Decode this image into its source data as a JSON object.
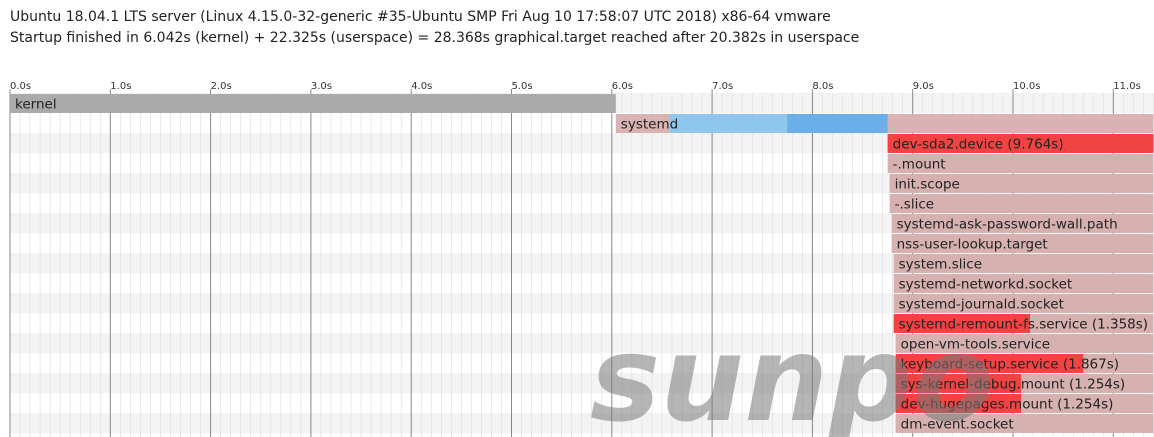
{
  "header": {
    "line1": "Ubuntu 18.04.1 LTS server (Linux 4.15.0-32-generic #35-Ubuntu SMP Fri Aug 10 17:58:07 UTC 2018) x86-64 vmware",
    "line2": "Startup finished in 6.042s (kernel) + 22.325s (userspace) = 28.368s graphical.target reached after 20.382s in userspace"
  },
  "watermark": "sunpo",
  "colors": {
    "kernel": "#aaaaaa",
    "systemd": "#d9b3b3",
    "activating": "#8ec6ee",
    "activating_late": "#6aaeea",
    "unit_bg": "#d7b0b0",
    "unit_active": "#f24343",
    "grid_minor": "#dddddd",
    "grid_major": "#888888",
    "background_stripe": "#f3f3f3"
  },
  "chart_data": {
    "type": "gantt",
    "xlabel": "",
    "ylabel": "",
    "xlim": [
      0,
      11.4
    ],
    "ticks": [
      "0.0s",
      "1.0s",
      "2.0s",
      "3.0s",
      "4.0s",
      "5.0s",
      "6.0s",
      "7.0s",
      "8.0s",
      "9.0s",
      "10.0s",
      "11.0s"
    ],
    "tick_values": [
      0,
      1,
      2,
      3,
      4,
      5,
      6,
      7,
      8,
      9,
      10,
      11
    ],
    "rows": [
      {
        "label": "kernel",
        "kind": "kernel",
        "start": 0.0,
        "end": 6.04
      },
      {
        "label": "systemd",
        "kind": "systemd",
        "start": 6.04,
        "end": 11.4,
        "act_start": 6.58,
        "act_mid": 7.75,
        "act_end": 8.75
      },
      {
        "label": "dev-sda2.device (9.764s)",
        "kind": "unit",
        "start": 8.75,
        "end": 11.4,
        "act_start": 8.75,
        "act_end": 11.4
      },
      {
        "label": "-.mount",
        "kind": "unit",
        "start": 8.75,
        "end": 11.4
      },
      {
        "label": "init.scope",
        "kind": "unit",
        "start": 8.77,
        "end": 11.4
      },
      {
        "label": "-.slice",
        "kind": "unit",
        "start": 8.77,
        "end": 11.4
      },
      {
        "label": "systemd-ask-password-wall.path",
        "kind": "unit",
        "start": 8.79,
        "end": 11.4
      },
      {
        "label": "nss-user-lookup.target",
        "kind": "unit",
        "start": 8.79,
        "end": 11.4
      },
      {
        "label": "system.slice",
        "kind": "unit",
        "start": 8.81,
        "end": 11.4
      },
      {
        "label": "systemd-networkd.socket",
        "kind": "unit",
        "start": 8.81,
        "end": 11.4
      },
      {
        "label": "systemd-journald.socket",
        "kind": "unit",
        "start": 8.81,
        "end": 11.4
      },
      {
        "label": "systemd-remount-fs.service (1.358s)",
        "kind": "unit",
        "start": 8.81,
        "end": 11.4,
        "act_start": 8.81,
        "act_end": 10.17
      },
      {
        "label": "open-vm-tools.service",
        "kind": "unit",
        "start": 8.83,
        "end": 11.4
      },
      {
        "label": "keyboard-setup.service (1.867s)",
        "kind": "unit",
        "start": 8.83,
        "end": 11.4,
        "act_start": 8.83,
        "act_end": 10.7
      },
      {
        "label": "sys-kernel-debug.mount (1.254s)",
        "kind": "unit",
        "start": 8.83,
        "end": 11.4,
        "act_start": 8.83,
        "act_end": 10.08
      },
      {
        "label": "dev-hugepages.mount (1.254s)",
        "kind": "unit",
        "start": 8.83,
        "end": 11.4,
        "act_start": 8.83,
        "act_end": 10.08
      },
      {
        "label": "dm-event.socket",
        "kind": "unit",
        "start": 8.83,
        "end": 11.4
      }
    ]
  }
}
